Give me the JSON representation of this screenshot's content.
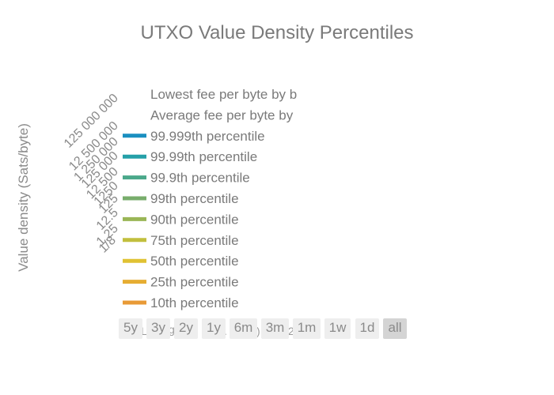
{
  "chart_data": {
    "type": "line",
    "title": "UTXO Value Density Percentiles",
    "ylabel": "Value density (Sats/byte)",
    "yscale": "log",
    "ytick_labels": [
      "1/8",
      "1.25",
      "12.5",
      "125",
      "1250",
      "12 500",
      "125 000",
      "1 250 000",
      "12 500 000",
      "125 000 000"
    ],
    "legend": [
      {
        "name": "Lowest fee per byte by b",
        "color": ""
      },
      {
        "name": "Average fee per byte by",
        "color": ""
      },
      {
        "name": "99.999th percentile",
        "color": "#1a8fc0"
      },
      {
        "name": "99.99th percentile",
        "color": "#25a0a8"
      },
      {
        "name": "99.9th percentile",
        "color": "#4aa88a"
      },
      {
        "name": "99th percentile",
        "color": "#78ad6c"
      },
      {
        "name": "90th percentile",
        "color": "#9ab656"
      },
      {
        "name": "75th percentile",
        "color": "#c2bf3e"
      },
      {
        "name": "50th percentile",
        "color": "#e0c233"
      },
      {
        "name": "25th percentile",
        "color": "#e6ad32"
      },
      {
        "name": "10th percentile",
        "color": "#e89a36"
      }
    ],
    "series": []
  },
  "range_selector": {
    "buttons": [
      "5y",
      "3y",
      "2y",
      "1y",
      "6m",
      "3m",
      "1m",
      "1w",
      "1d",
      "all"
    ],
    "active": "all"
  }
}
